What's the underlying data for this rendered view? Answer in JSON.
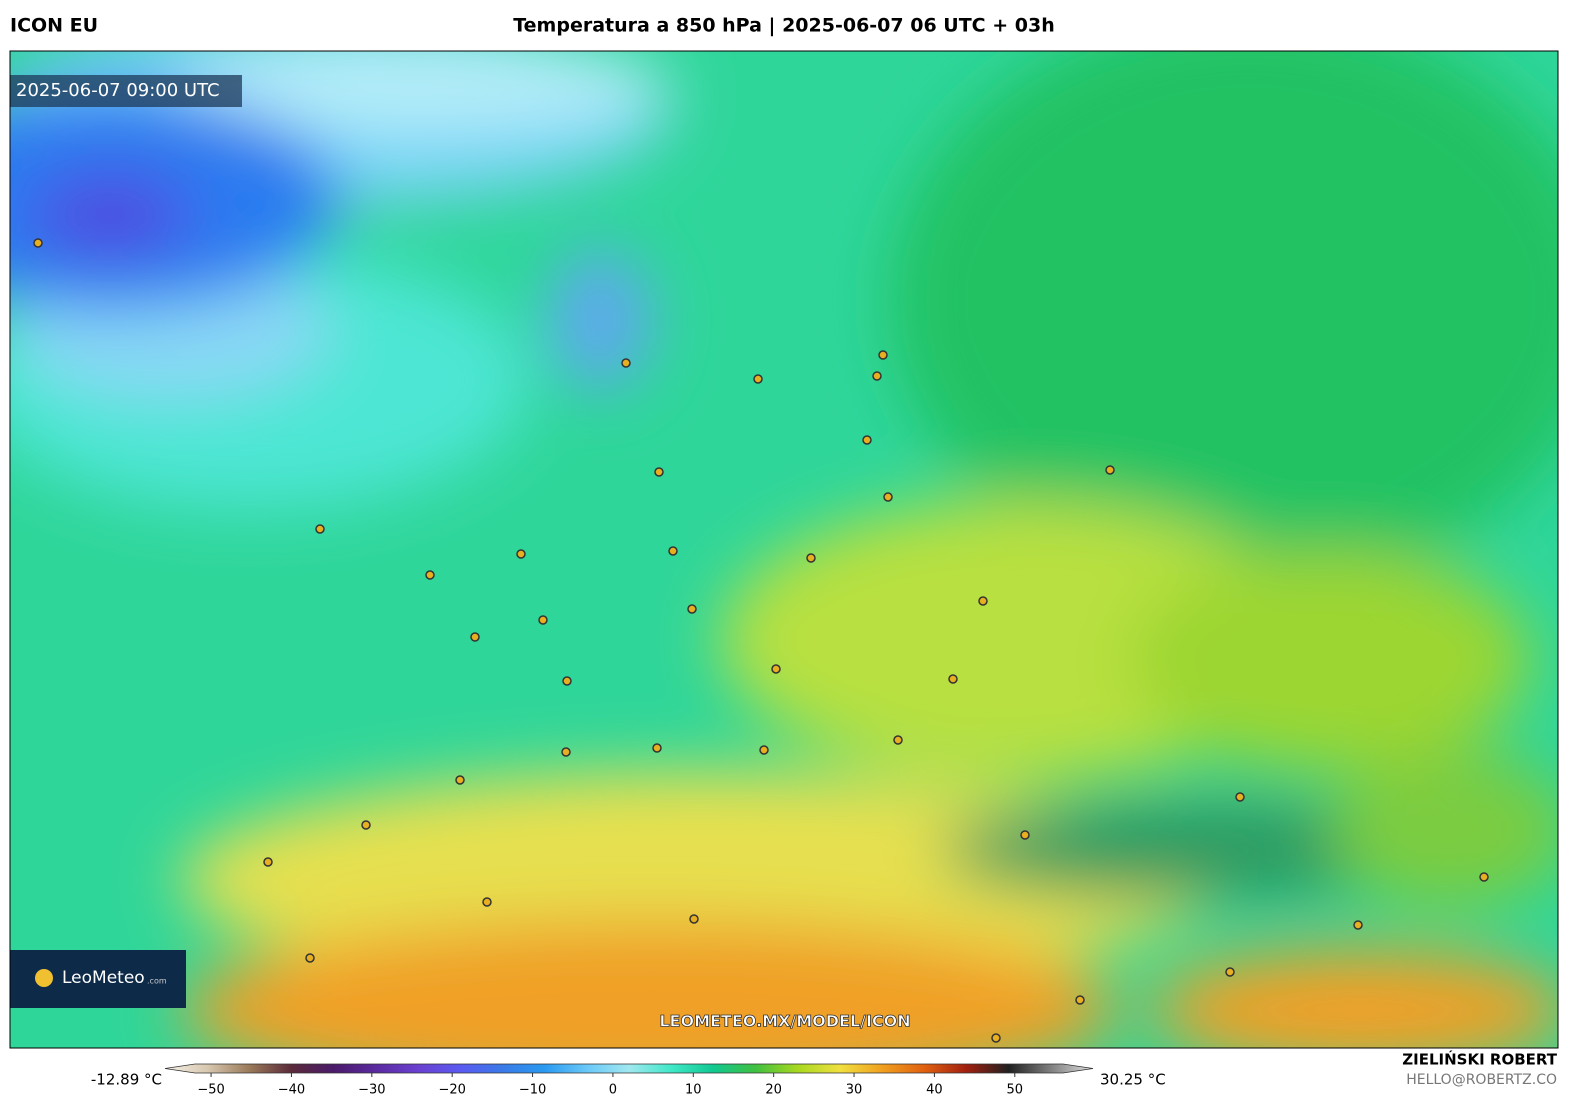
{
  "header": {
    "model": "ICON EU",
    "title": "Temperatura a 850 hPa | 2025-06-07 06 UTC + 03h"
  },
  "map": {
    "timestamp": "2025-06-07 09:00 UTC",
    "watermark": "LEOMETEO.MX/MODEL/ICON",
    "logo": "LeoMeteo",
    "logo_suffix": ".com"
  },
  "colorbar": {
    "min_label": "-12.89 °C",
    "max_label": "30.25 °C",
    "range": [
      -52,
      56
    ],
    "ticks": [
      {
        "value": -50,
        "label": "−50"
      },
      {
        "value": -40,
        "label": "−40"
      },
      {
        "value": -30,
        "label": "−30"
      },
      {
        "value": -20,
        "label": "−20"
      },
      {
        "value": -10,
        "label": "−10"
      },
      0,
      10,
      20,
      30,
      40,
      50
    ],
    "colors": [
      "#f5f0e6",
      "#d8c8b0",
      "#9a7a5a",
      "#5a2a3a",
      "#4a1a6a",
      "#5a2aa0",
      "#6a40d0",
      "#5a5af0",
      "#3a7ae8",
      "#2a9af0",
      "#6ac8f8",
      "#a0e8f0",
      "#40e8c8",
      "#10c890",
      "#40c040",
      "#a8d820",
      "#f0e040",
      "#f0a020",
      "#e06010",
      "#a02010",
      "#202020",
      "#808080",
      "#e0e0e0"
    ]
  },
  "credit": {
    "name": "ZIELIŃSKI ROBERT",
    "email": "HELLO@ROBERTZ.CO"
  }
}
